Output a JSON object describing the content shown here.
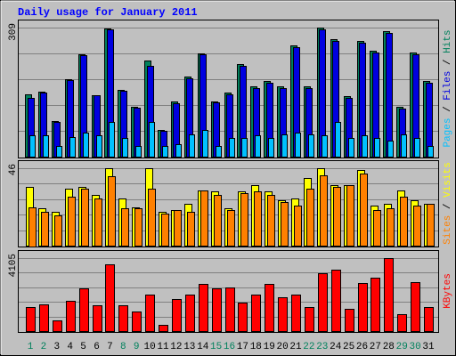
{
  "chart_data": [
    {
      "type": "bar",
      "title": "Daily usage for January 2011",
      "ylim": [
        0,
        309
      ],
      "yticks": [
        309
      ],
      "legend_separator": " / ",
      "series": [
        {
          "name": "Hits",
          "color": "#00805c",
          "values": [
            149,
            156,
            85,
            185,
            245,
            147,
            307,
            160,
            119,
            230,
            64,
            132,
            192,
            247,
            132,
            153,
            222,
            168,
            181,
            168,
            266,
            168,
            309,
            281,
            145,
            277,
            253,
            300,
            119,
            249,
            181
          ]
        },
        {
          "name": "Files",
          "color": "#0000e0",
          "values": [
            141,
            153,
            83,
            183,
            243,
            147,
            305,
            157,
            117,
            217,
            62,
            128,
            188,
            245,
            130,
            149,
            218,
            164,
            177,
            164,
            262,
            164,
            305,
            277,
            141,
            273,
            249,
            296,
            115,
            245,
            177
          ]
        },
        {
          "name": "Pages",
          "color": "#00c0ff",
          "values": [
            51,
            51,
            26,
            47,
            58,
            51,
            83,
            45,
            26,
            83,
            26,
            30,
            53,
            64,
            26,
            45,
            45,
            51,
            45,
            53,
            58,
            53,
            51,
            83,
            45,
            51,
            45,
            38,
            53,
            45,
            26
          ]
        }
      ]
    },
    {
      "type": "bar",
      "ylim": [
        0,
        46
      ],
      "yticks": [
        46
      ],
      "legend_separator": " / ",
      "series": [
        {
          "name": "Visits",
          "color": "#ffff00",
          "values": [
            35,
            22,
            20,
            34,
            35,
            30,
            46,
            28,
            23,
            46,
            20,
            21,
            25,
            33,
            32,
            22,
            32,
            36,
            32,
            27,
            28,
            40,
            46,
            36,
            36,
            45,
            24,
            25,
            33,
            27,
            25
          ]
        },
        {
          "name": "Sites",
          "color": "#ff8000",
          "values": [
            23,
            20,
            18,
            29,
            34,
            28,
            41,
            22,
            22,
            34,
            19,
            21,
            20,
            33,
            30,
            21,
            31,
            32,
            30,
            26,
            24,
            34,
            42,
            35,
            36,
            43,
            21,
            22,
            29,
            24,
            25
          ]
        }
      ]
    },
    {
      "type": "bar",
      "ylim": [
        0,
        4105
      ],
      "yticks": [
        4105
      ],
      "series": [
        {
          "name": "KBytes",
          "color": "#ff0000",
          "values": [
            1337,
            1522,
            600,
            1706,
            2398,
            1430,
            3736,
            1430,
            1107,
            2075,
            369,
            1799,
            2029,
            2629,
            2398,
            2444,
            1614,
            2075,
            2629,
            1891,
            2075,
            1337,
            3274,
            3459,
            1245,
            2721,
            2998,
            4105,
            968,
            2767,
            1337
          ]
        }
      ],
      "categories": [
        "1",
        "2",
        "3",
        "4",
        "5",
        "6",
        "7",
        "8",
        "9",
        "10",
        "11",
        "12",
        "13",
        "14",
        "15",
        "16",
        "17",
        "18",
        "19",
        "20",
        "21",
        "22",
        "23",
        "24",
        "25",
        "26",
        "27",
        "28",
        "29",
        "30",
        "31"
      ],
      "category_colors": [
        "#00805c",
        "#00805c",
        "#000000",
        "#000000",
        "#000000",
        "#000000",
        "#000000",
        "#00805c",
        "#00805c",
        "#000000",
        "#000000",
        "#000000",
        "#000000",
        "#000000",
        "#00805c",
        "#00805c",
        "#000000",
        "#000000",
        "#000000",
        "#000000",
        "#000000",
        "#00805c",
        "#00805c",
        "#000000",
        "#000000",
        "#000000",
        "#000000",
        "#000000",
        "#00805c",
        "#00805c",
        "#000000"
      ]
    }
  ]
}
